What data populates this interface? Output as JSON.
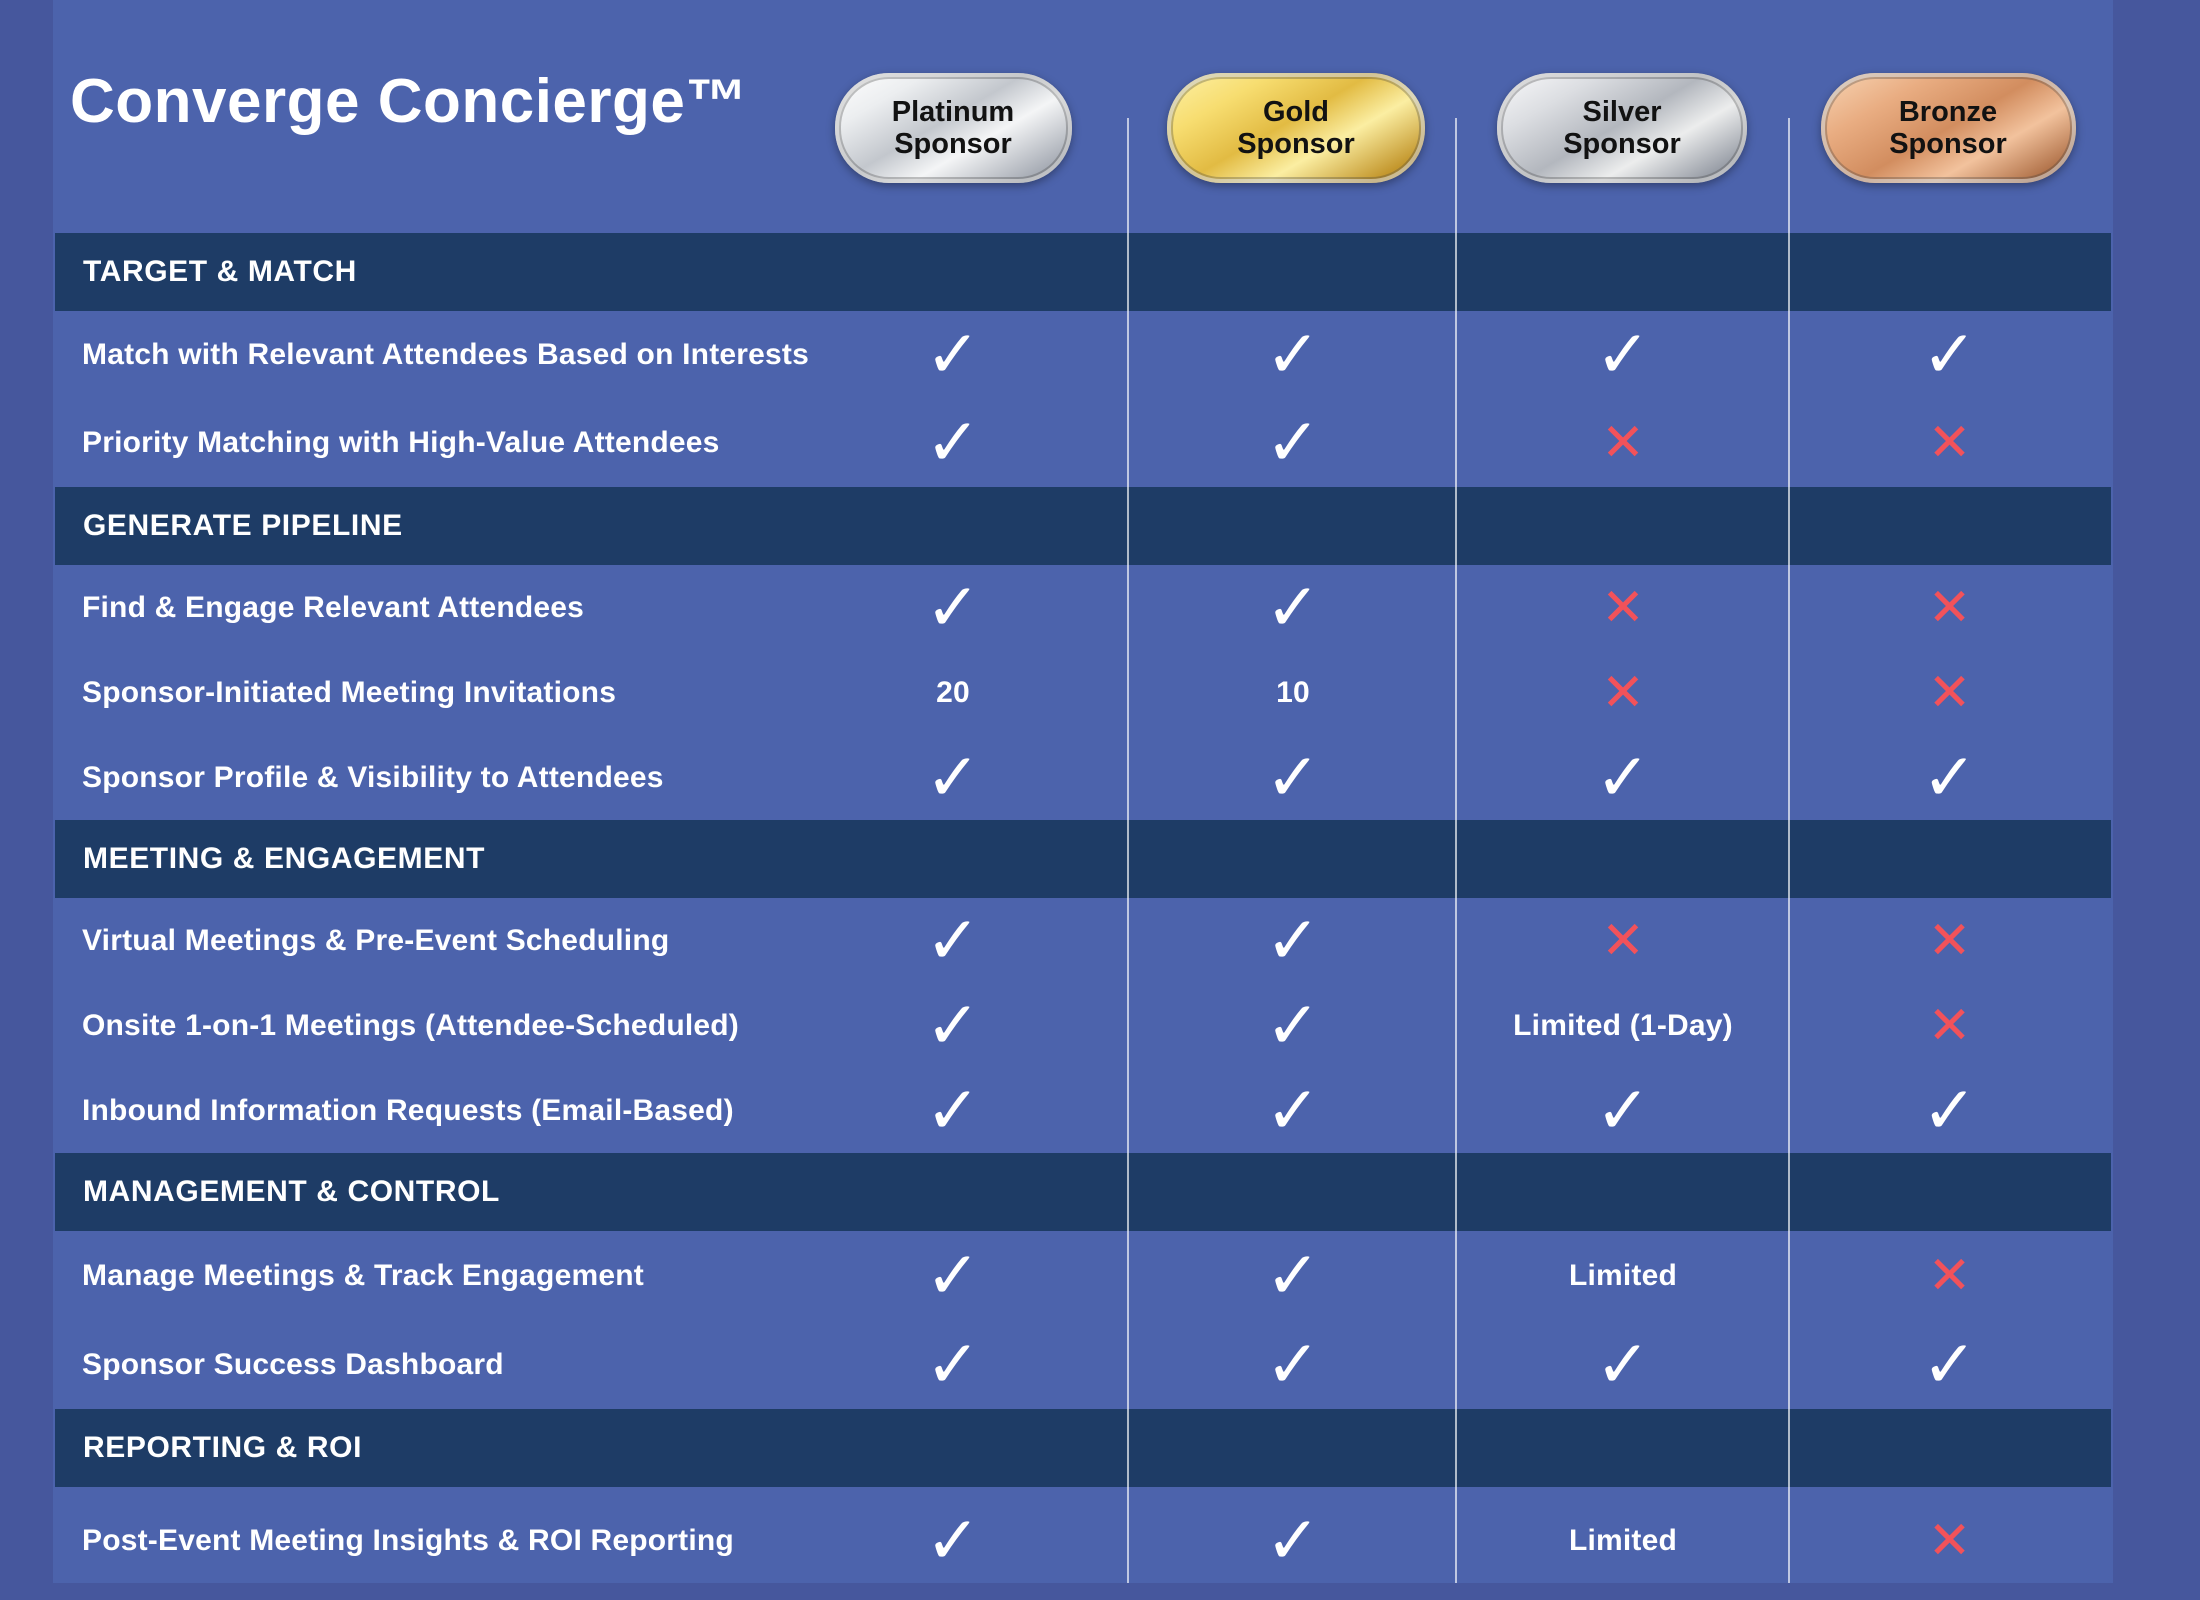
{
  "chart_data": {
    "type": "table",
    "title": "Converge Concierge™",
    "column_headers": [
      {
        "tier": "platinum",
        "lines": [
          "Platinum",
          "Sponsor"
        ]
      },
      {
        "tier": "gold",
        "lines": [
          "Gold",
          "Sponsor"
        ]
      },
      {
        "tier": "silver",
        "lines": [
          "Silver",
          "Sponsor"
        ]
      },
      {
        "tier": "bronze",
        "lines": [
          "Bronze",
          "Sponsor"
        ]
      }
    ],
    "sections": [
      {
        "name": "TARGET & MATCH",
        "rows": [
          {
            "feature": "Match with Relevant Attendees Based on Interests",
            "values": [
              "check",
              "check",
              "check",
              "check"
            ]
          },
          {
            "feature": "Priority Matching with High-Value Attendees",
            "values": [
              "check",
              "check",
              "cross",
              "cross"
            ]
          }
        ]
      },
      {
        "name": "GENERATE PIPELINE",
        "rows": [
          {
            "feature": "Find & Engage Relevant Attendees",
            "values": [
              "check",
              "check",
              "cross",
              "cross"
            ]
          },
          {
            "feature": "Sponsor-Initiated Meeting Invitations",
            "values": [
              "20",
              "10",
              "cross",
              "cross"
            ]
          },
          {
            "feature": "Sponsor Profile & Visibility to Attendees",
            "values": [
              "check",
              "check",
              "check",
              "check"
            ]
          }
        ]
      },
      {
        "name": "MEETING & ENGAGEMENT",
        "rows": [
          {
            "feature": "Virtual Meetings & Pre-Event Scheduling",
            "values": [
              "check",
              "check",
              "cross",
              "cross"
            ]
          },
          {
            "feature": "Onsite 1-on-1 Meetings (Attendee-Scheduled)",
            "values": [
              "check",
              "check",
              "Limited (1-Day)",
              "cross"
            ]
          },
          {
            "feature": "Inbound Information Requests (Email-Based)",
            "values": [
              "check",
              "check",
              "check",
              "check"
            ]
          }
        ]
      },
      {
        "name": "MANAGEMENT & CONTROL",
        "rows": [
          {
            "feature": "Manage Meetings & Track Engagement",
            "values": [
              "check",
              "check",
              "Limited",
              "cross"
            ]
          },
          {
            "feature": "Sponsor Success Dashboard",
            "values": [
              "check",
              "check",
              "check",
              "check"
            ]
          }
        ]
      },
      {
        "name": "REPORTING & ROI",
        "rows": [
          {
            "feature": "Post-Event Meeting Insights & ROI Reporting",
            "values": [
              "check",
              "check",
              "Limited",
              "cross"
            ]
          }
        ]
      }
    ]
  },
  "icons": {
    "check": "✓",
    "cross": "✕"
  },
  "colors": {
    "background": "#46579D",
    "panel": "#4C63AC",
    "section_bar": "#1E3C66",
    "check": "#FFFFFF",
    "cross": "#F2525A",
    "badge_platinum": "#D9DBDE",
    "badge_gold": "#EDCB5C",
    "badge_silver": "#C9CCD1",
    "badge_bronze": "#D99A6E"
  }
}
